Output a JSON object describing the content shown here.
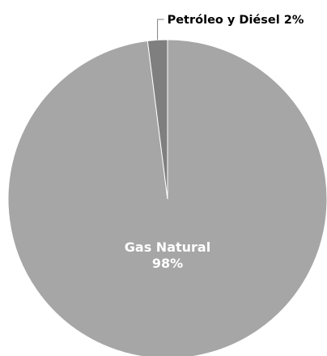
{
  "chart_data": {
    "type": "pie",
    "title": "",
    "slices": [
      {
        "label": "Gas Natural",
        "value": 98,
        "value_label": "98%",
        "color": "#a6a6a6",
        "label_placement": "inside"
      },
      {
        "label": "Petróleo y Diésel",
        "value": 2,
        "value_label": "2%",
        "color": "#7f7f7f",
        "label_placement": "outside",
        "label_text": "Petróleo y Diésel 2%"
      }
    ],
    "start_angle_deg": 0,
    "direction": "clockwise",
    "legend": "none"
  },
  "colors": {
    "slice_edge": "#ffffff",
    "leader_line": "#7f7f7f",
    "outside_label_text": "#000000",
    "inside_label_text": "#ffffff"
  }
}
